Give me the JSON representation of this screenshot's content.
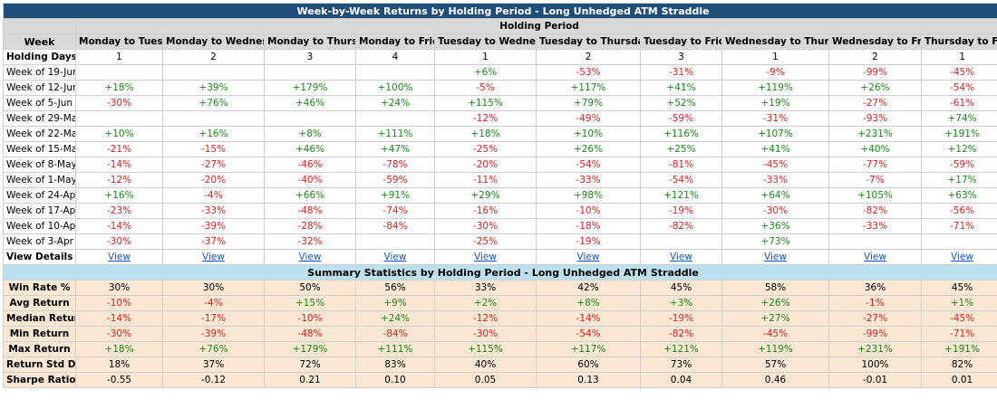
{
  "title": "Week-by-Week Returns by Holding Period - Long Unhedged ATM Straddle",
  "holding_period_label": "Holding Period",
  "week_header": "Week",
  "columns": [
    "Monday to Tuesday",
    "Monday to Wednesday",
    "Monday to Thursday",
    "Monday to Friday",
    "Tuesday to Wednesday",
    "Tuesday to Thursday",
    "Tuesday to Friday",
    "Wednesday to Thursday",
    "Wednesday to Friday",
    "Thursday to Friday"
  ],
  "holding_days_label": "Holding Days",
  "holding_days": [
    "1",
    "2",
    "3",
    "4",
    "1",
    "2",
    "3",
    "1",
    "2",
    "1"
  ],
  "weeks": [
    {
      "label": "Week of 19-Jun",
      "values": [
        "",
        "",
        "",
        "",
        "+6%",
        "-53%",
        "-31%",
        "-9%",
        "-99%",
        "-45%"
      ]
    },
    {
      "label": "Week of 12-Jun",
      "values": [
        "+18%",
        "+39%",
        "+179%",
        "+100%",
        "-5%",
        "+117%",
        "+41%",
        "+119%",
        "+26%",
        "-54%"
      ]
    },
    {
      "label": "Week of 5-Jun",
      "values": [
        "-30%",
        "+76%",
        "+46%",
        "+24%",
        "+115%",
        "+79%",
        "+52%",
        "+19%",
        "-27%",
        "-61%"
      ]
    },
    {
      "label": "Week of 29-May",
      "values": [
        "",
        "",
        "",
        "",
        "-12%",
        "-49%",
        "-59%",
        "-31%",
        "-93%",
        "+74%"
      ]
    },
    {
      "label": "Week of 22-May",
      "values": [
        "+10%",
        "+16%",
        "+8%",
        "+111%",
        "+18%",
        "+10%",
        "+116%",
        "+107%",
        "+231%",
        "+191%"
      ]
    },
    {
      "label": "Week of 15-May",
      "values": [
        "-21%",
        "-15%",
        "+46%",
        "+47%",
        "-25%",
        "+26%",
        "+25%",
        "+41%",
        "+40%",
        "+12%"
      ]
    },
    {
      "label": "Week of 8-May",
      "values": [
        "-14%",
        "-27%",
        "-46%",
        "-78%",
        "-20%",
        "-54%",
        "-81%",
        "-45%",
        "-77%",
        "-59%"
      ]
    },
    {
      "label": "Week of 1-May",
      "values": [
        "-12%",
        "-20%",
        "-40%",
        "-59%",
        "-11%",
        "-33%",
        "-54%",
        "-33%",
        "-7%",
        "+17%"
      ]
    },
    {
      "label": "Week of 24-Apr",
      "values": [
        "+16%",
        "-4%",
        "+66%",
        "+91%",
        "+29%",
        "+98%",
        "+121%",
        "+64%",
        "+105%",
        "+63%"
      ]
    },
    {
      "label": "Week of 17-Apr",
      "values": [
        "-23%",
        "-33%",
        "-48%",
        "-74%",
        "-16%",
        "-10%",
        "-19%",
        "-30%",
        "-82%",
        "-56%"
      ]
    },
    {
      "label": "Week of 10-Apr",
      "values": [
        "-14%",
        "-39%",
        "-28%",
        "-84%",
        "-30%",
        "-18%",
        "-82%",
        "+36%",
        "-33%",
        "-71%"
      ]
    },
    {
      "label": "Week of 3-Apr",
      "values": [
        "-30%",
        "-37%",
        "-32%",
        "",
        "-25%",
        "-19%",
        "",
        "+73%",
        "",
        ""
      ]
    }
  ],
  "view_details_label": "View Details",
  "view_links": [
    "View",
    "View",
    "View",
    "View",
    "View",
    "View",
    "View",
    "View",
    "View",
    "View"
  ],
  "summary_title": "Summary Statistics by Holding Period - Long Unhedged ATM Straddle",
  "stats": [
    {
      "label": "Win Rate %",
      "values": [
        "30%",
        "30%",
        "50%",
        "56%",
        "33%",
        "42%",
        "45%",
        "58%",
        "36%",
        "45%"
      ]
    },
    {
      "label": "Avg Return",
      "values": [
        "-10%",
        "-4%",
        "+15%",
        "+9%",
        "+2%",
        "+8%",
        "+3%",
        "+26%",
        "-1%",
        "+1%"
      ]
    },
    {
      "label": "Median Return",
      "values": [
        "-14%",
        "-17%",
        "-10%",
        "+24%",
        "-12%",
        "-14%",
        "-19%",
        "+27%",
        "-27%",
        "-45%"
      ]
    },
    {
      "label": "Min Return",
      "values": [
        "-30%",
        "-39%",
        "-48%",
        "-84%",
        "-30%",
        "-54%",
        "-82%",
        "-45%",
        "-99%",
        "-71%"
      ]
    },
    {
      "label": "Max Return",
      "values": [
        "+18%",
        "+76%",
        "+179%",
        "+111%",
        "+115%",
        "+117%",
        "+121%",
        "+119%",
        "+231%",
        "+191%"
      ]
    },
    {
      "label": "Return Std Dev",
      "values": [
        "18%",
        "37%",
        "72%",
        "83%",
        "40%",
        "60%",
        "73%",
        "57%",
        "100%",
        "82%"
      ]
    },
    {
      "label": "Sharpe Ratio",
      "values": [
        "-0.55",
        "-0.12",
        "0.21",
        "0.10",
        "0.05",
        "0.13",
        "0.04",
        "0.46",
        "-0.01",
        "0.01"
      ]
    }
  ],
  "colors": {
    "title_bg": "#1f4e79",
    "header_bg": "#d9d9d9",
    "summary_title_bg": "#bde0f0",
    "stats_bg": "#fbe7d2",
    "positive": "#1a8a1a",
    "negative": "#e02020",
    "link": "#1155cc"
  }
}
